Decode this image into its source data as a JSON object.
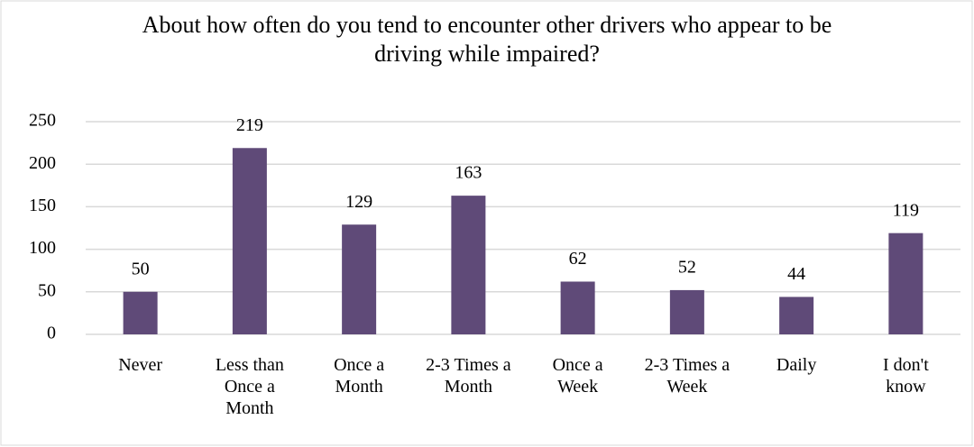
{
  "chart_data": {
    "type": "bar",
    "title": "About how often do you tend to encounter other drivers who appear to be driving while impaired?",
    "categories": [
      "Never",
      "Less than Once a Month",
      "Once a Month",
      "2-3 Times a Month",
      "Once a Week",
      "2-3 Times a Week",
      "Daily",
      "I don't know"
    ],
    "values": [
      50,
      219,
      129,
      163,
      62,
      52,
      44,
      119
    ],
    "color": "#5f4a78",
    "ylim": [
      0,
      250
    ],
    "yticks": [
      0,
      50,
      100,
      150,
      200,
      250
    ],
    "grid": true
  }
}
